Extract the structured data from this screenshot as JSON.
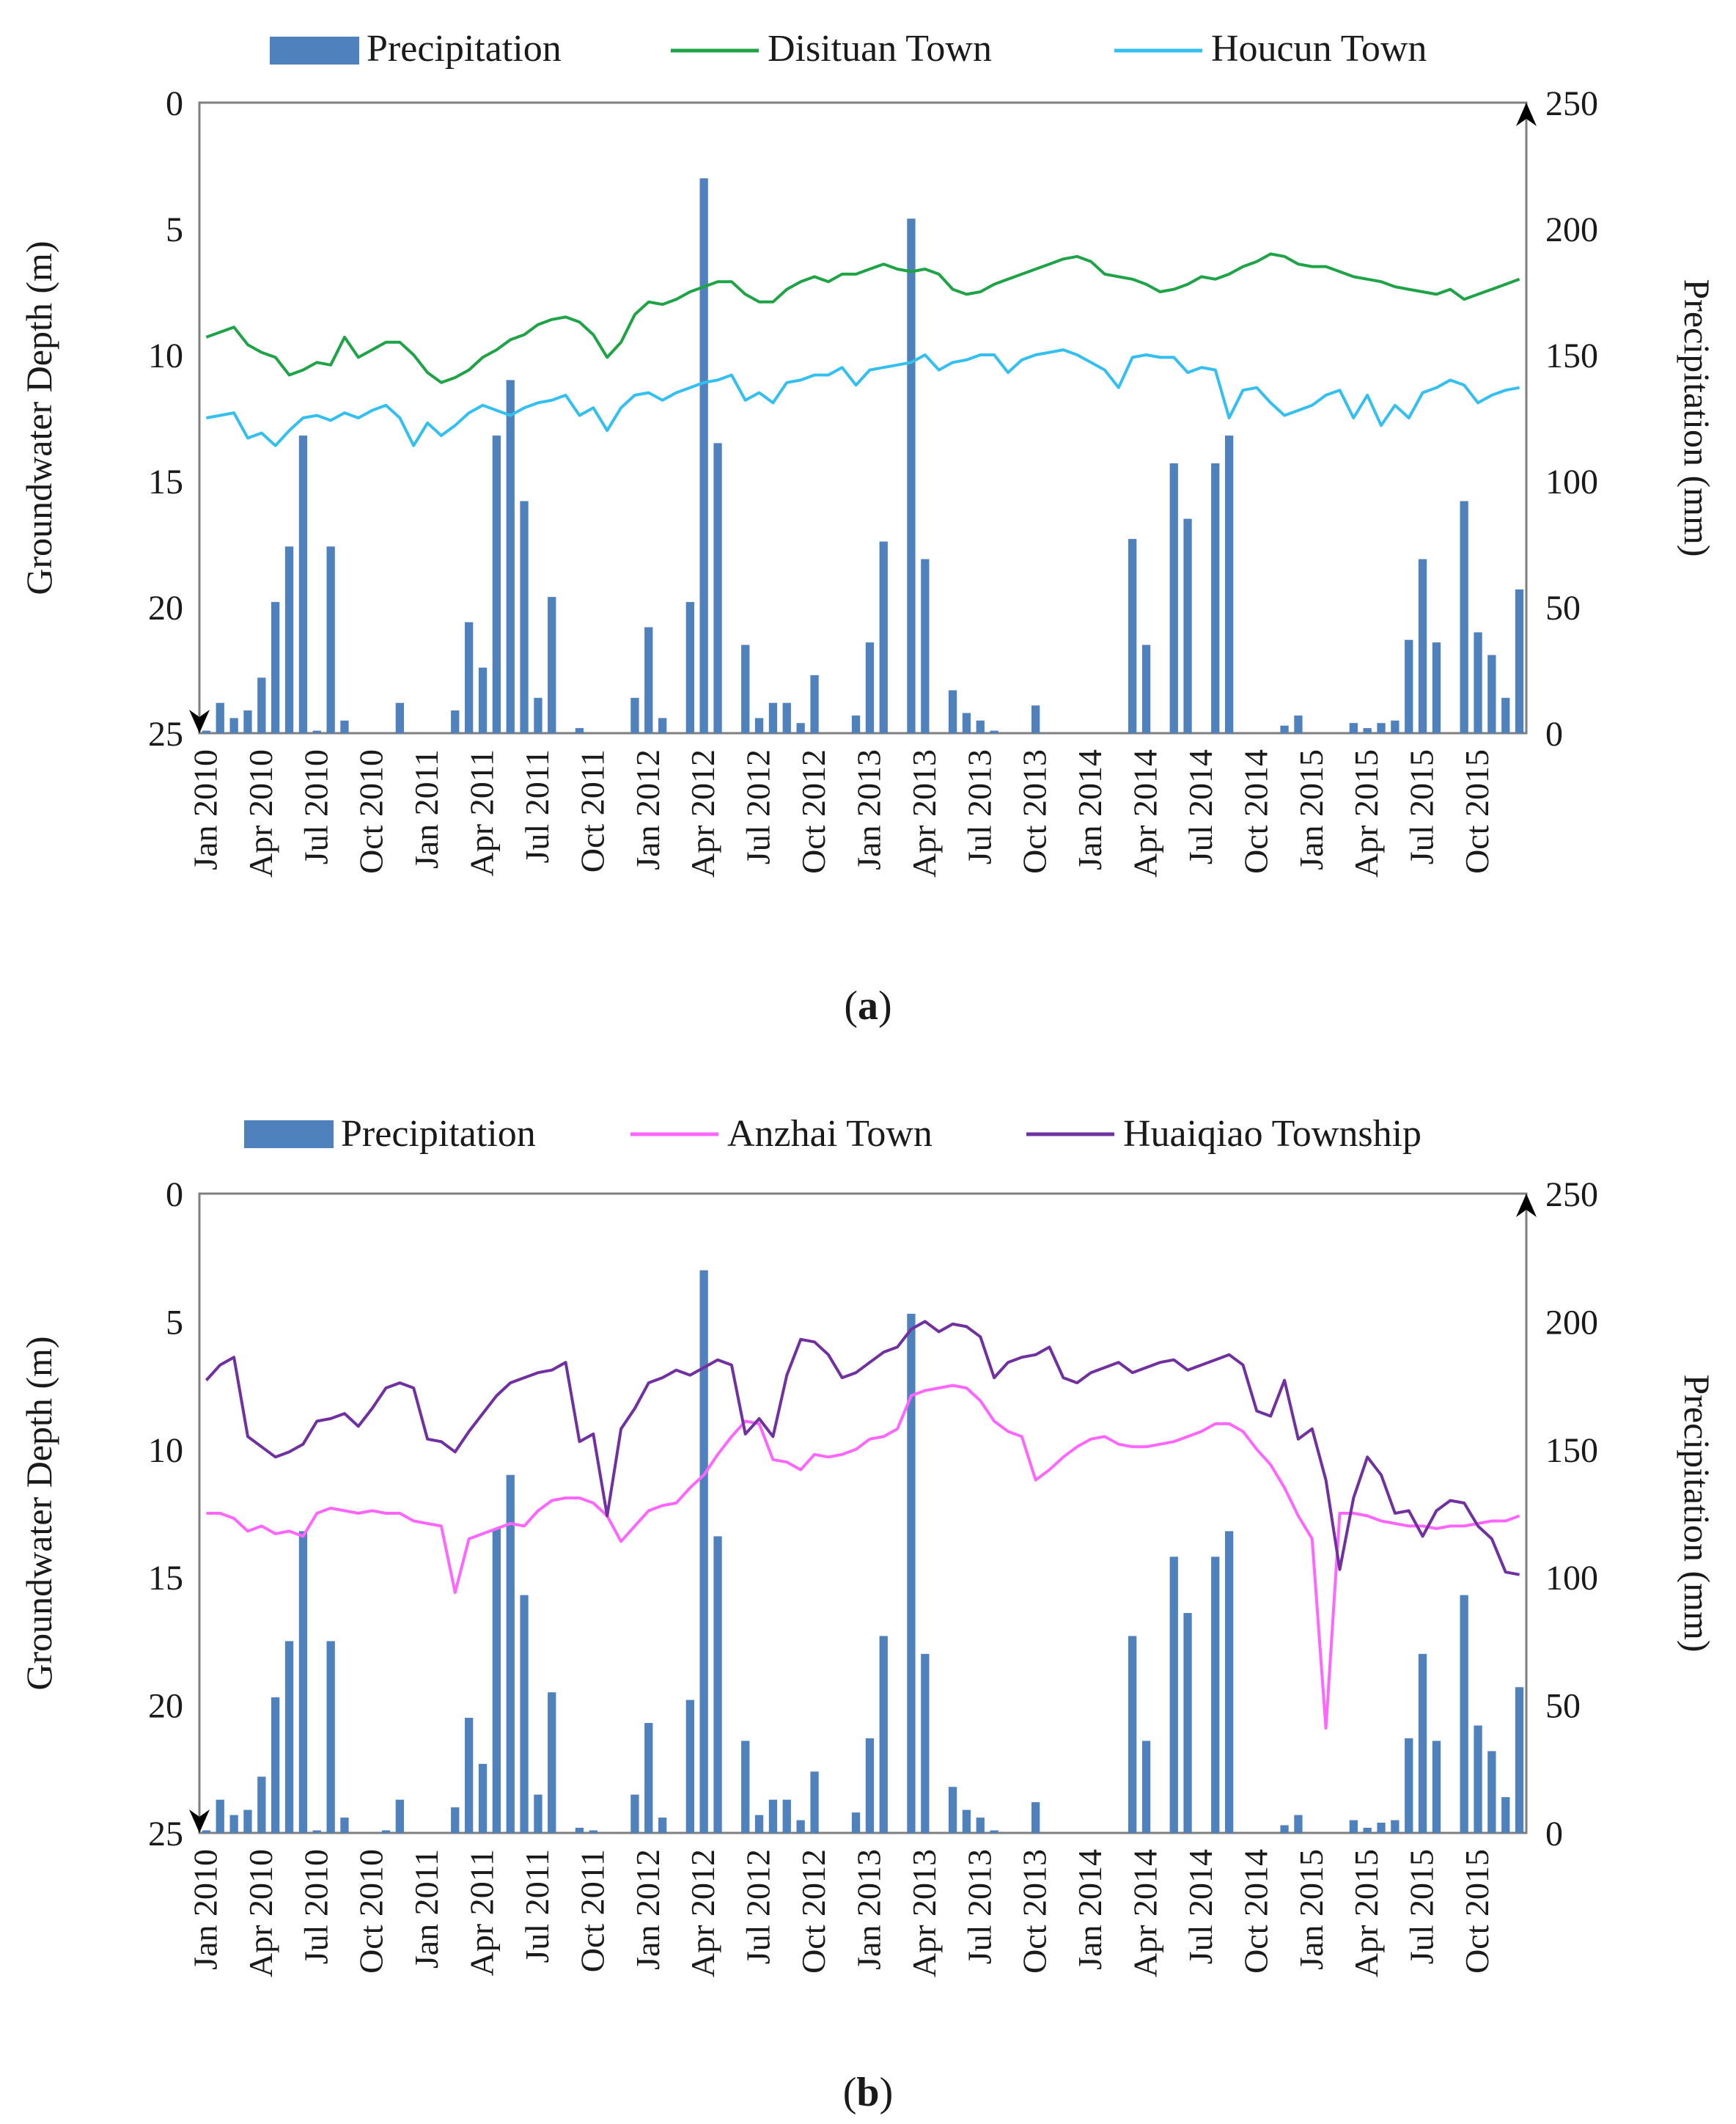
{
  "chart_data": [
    {
      "type": "bar+line",
      "panel_label": "(a)",
      "panel_letter": "a",
      "x_tick_labels": [
        "Jan 2010",
        "Apr 2010",
        "Jul 2010",
        "Oct 2010",
        "Jan 2011",
        "Apr 2011",
        "Jul 2011",
        "Oct 2011",
        "Jan 2012",
        "Apr 2012",
        "Jul 2012",
        "Oct 2012",
        "Jan 2013",
        "Apr 2013",
        "Jul 2013",
        "Oct 2013",
        "Jan 2014",
        "Apr 2014",
        "Jul 2014",
        "Oct 2014",
        "Jan 2015",
        "Apr 2015",
        "Jul 2015",
        "Oct 2015"
      ],
      "y_left": {
        "label": "Groundwater  Depth (m)",
        "ticks": [
          "0",
          "5",
          "10",
          "15",
          "20",
          "25"
        ],
        "range": [
          0,
          25
        ],
        "inverted": true
      },
      "y_right": {
        "label": "Precipitation (mm)",
        "ticks": [
          "0",
          "50",
          "100",
          "150",
          "200",
          "250"
        ],
        "range": [
          0,
          250
        ]
      },
      "legend": [
        "Precipitation",
        "Disituan Town",
        "Houcun Town"
      ],
      "precipitation": {
        "name": "Precipitation",
        "color": "#4f81bd",
        "values": [
          1,
          12,
          6,
          9,
          22,
          52,
          74,
          118,
          1,
          74,
          5,
          0,
          0,
          0,
          12,
          0,
          0,
          0,
          9,
          44,
          26,
          118,
          140,
          92,
          14,
          54,
          0,
          2,
          0,
          0,
          0,
          14,
          42,
          6,
          0,
          52,
          220,
          115,
          0,
          35,
          6,
          12,
          12,
          4,
          23,
          0,
          0,
          7,
          36,
          76,
          0,
          204,
          69,
          0,
          17,
          8,
          5,
          1,
          0,
          0,
          11,
          0,
          0,
          0,
          0,
          0,
          0,
          77,
          35,
          0,
          107,
          85,
          0,
          107,
          118,
          0,
          0,
          0,
          3,
          7,
          0,
          0,
          0,
          4,
          2,
          4,
          5,
          37,
          69,
          36,
          0,
          92,
          40,
          31,
          14,
          57
        ]
      },
      "series": [
        {
          "name": "Disituan Town",
          "color": "#1ea346",
          "values": [
            9.3,
            9.1,
            8.9,
            9.6,
            9.9,
            10.1,
            10.8,
            10.6,
            10.3,
            10.4,
            9.3,
            10.1,
            9.8,
            9.5,
            9.5,
            10.0,
            10.7,
            11.1,
            10.9,
            10.6,
            10.1,
            9.8,
            9.4,
            9.2,
            8.8,
            8.6,
            8.5,
            8.7,
            9.2,
            10.1,
            9.5,
            8.4,
            7.9,
            8.0,
            7.8,
            7.5,
            7.3,
            7.1,
            7.1,
            7.6,
            7.9,
            7.9,
            7.4,
            7.1,
            6.9,
            7.1,
            6.8,
            6.8,
            6.6,
            6.4,
            6.6,
            6.7,
            6.6,
            6.8,
            7.4,
            7.6,
            7.5,
            7.2,
            7.0,
            6.8,
            6.6,
            6.4,
            6.2,
            6.1,
            6.3,
            6.8,
            6.9,
            7.0,
            7.2,
            7.5,
            7.4,
            7.2,
            6.9,
            7.0,
            6.8,
            6.5,
            6.3,
            6.0,
            6.1,
            6.4,
            6.5,
            6.5,
            6.7,
            6.9,
            7.0,
            7.1,
            7.3,
            7.4,
            7.5,
            7.6,
            7.4,
            7.8,
            7.6,
            7.4,
            7.2,
            7.0
          ]
        },
        {
          "name": "Houcun Town",
          "color": "#33bff0",
          "values": [
            12.5,
            12.4,
            12.3,
            13.3,
            13.1,
            13.6,
            13.0,
            12.5,
            12.4,
            12.6,
            12.3,
            12.5,
            12.2,
            12.0,
            12.5,
            13.6,
            12.7,
            13.2,
            12.8,
            12.3,
            12.0,
            12.2,
            12.4,
            12.1,
            11.9,
            11.8,
            11.6,
            12.4,
            12.1,
            13.0,
            12.1,
            11.6,
            11.5,
            11.8,
            11.5,
            11.3,
            11.1,
            11.0,
            10.8,
            11.8,
            11.5,
            11.9,
            11.1,
            11.0,
            10.8,
            10.8,
            10.5,
            11.2,
            10.6,
            10.5,
            10.4,
            10.3,
            10.0,
            10.6,
            10.3,
            10.2,
            10.0,
            10.0,
            10.7,
            10.2,
            10.0,
            9.9,
            9.8,
            10.0,
            10.3,
            10.6,
            11.3,
            10.1,
            10.0,
            10.1,
            10.1,
            10.7,
            10.5,
            10.6,
            12.5,
            11.4,
            11.3,
            11.9,
            12.4,
            12.2,
            12.0,
            11.6,
            11.4,
            12.5,
            11.6,
            12.8,
            12.0,
            12.5,
            11.5,
            11.3,
            11.0,
            11.2,
            11.9,
            11.6,
            11.4,
            11.3
          ]
        }
      ]
    },
    {
      "type": "bar+line",
      "panel_label": "(b)",
      "panel_letter": "b",
      "x_tick_labels": [
        "Jan 2010",
        "Apr 2010",
        "Jul 2010",
        "Oct 2010",
        "Jan 2011",
        "Apr 2011",
        "Jul 2011",
        "Oct 2011",
        "Jan 2012",
        "Apr 2012",
        "Jul 2012",
        "Oct 2012",
        "Jan 2013",
        "Apr 2013",
        "Jul 2013",
        "Oct 2013",
        "Jan 2014",
        "Apr 2014",
        "Jul 2014",
        "Oct 2014",
        "Jan 2015",
        "Apr 2015",
        "Jul 2015",
        "Oct 2015"
      ],
      "y_left": {
        "label": "Groundwater Depth (m)",
        "ticks": [
          "0",
          "5",
          "10",
          "15",
          "20",
          "25"
        ],
        "range": [
          0,
          25
        ],
        "inverted": true
      },
      "y_right": {
        "label": "Precipitation (mm)",
        "ticks": [
          "0",
          "50",
          "100",
          "150",
          "200",
          "250"
        ],
        "range": [
          0,
          250
        ]
      },
      "legend": [
        "Precipitation",
        "Anzhai Town",
        "Huaiqiao Township"
      ],
      "precipitation": {
        "name": "Precipitation",
        "color": "#4f81bd",
        "values": [
          1,
          13,
          7,
          9,
          22,
          53,
          75,
          118,
          1,
          75,
          6,
          0,
          0,
          1,
          13,
          0,
          0,
          0,
          10,
          45,
          27,
          119,
          140,
          93,
          15,
          55,
          0,
          2,
          1,
          0,
          0,
          15,
          43,
          6,
          0,
          52,
          220,
          116,
          0,
          36,
          7,
          13,
          13,
          5,
          24,
          0,
          0,
          8,
          37,
          77,
          0,
          203,
          70,
          0,
          18,
          9,
          6,
          1,
          0,
          0,
          12,
          0,
          0,
          0,
          0,
          0,
          0,
          77,
          36,
          0,
          108,
          86,
          0,
          108,
          118,
          0,
          0,
          0,
          3,
          7,
          0,
          0,
          0,
          5,
          2,
          4,
          5,
          37,
          70,
          36,
          0,
          93,
          42,
          32,
          14,
          57
        ]
      },
      "series": [
        {
          "name": "Anzhai Town",
          "color": "#ff66ff",
          "values": [
            12.5,
            12.5,
            12.7,
            13.2,
            13.0,
            13.3,
            13.2,
            13.4,
            12.5,
            12.3,
            12.4,
            12.5,
            12.4,
            12.5,
            12.5,
            12.8,
            12.9,
            13.0,
            15.6,
            13.5,
            13.3,
            13.1,
            12.9,
            13.0,
            12.4,
            12.0,
            11.9,
            11.9,
            12.1,
            12.6,
            13.6,
            13.0,
            12.4,
            12.2,
            12.1,
            11.5,
            11.0,
            10.2,
            9.5,
            8.9,
            9.0,
            10.4,
            10.5,
            10.8,
            10.2,
            10.3,
            10.2,
            10.0,
            9.6,
            9.5,
            9.2,
            7.9,
            7.7,
            7.6,
            7.5,
            7.6,
            8.1,
            8.9,
            9.3,
            9.5,
            11.2,
            10.8,
            10.3,
            9.9,
            9.6,
            9.5,
            9.8,
            9.9,
            9.9,
            9.8,
            9.7,
            9.5,
            9.3,
            9.0,
            9.0,
            9.3,
            10.0,
            10.6,
            11.5,
            12.6,
            13.5,
            20.9,
            12.5,
            12.5,
            12.6,
            12.8,
            12.9,
            13.0,
            13.0,
            13.1,
            13.0,
            13.0,
            12.9,
            12.8,
            12.8,
            12.6
          ]
        },
        {
          "name": "Huaiqiao Township",
          "color": "#7030a0",
          "values": [
            7.3,
            6.7,
            6.4,
            9.5,
            9.9,
            10.3,
            10.1,
            9.8,
            8.9,
            8.8,
            8.6,
            9.1,
            8.4,
            7.6,
            7.4,
            7.6,
            9.6,
            9.7,
            10.1,
            9.3,
            8.6,
            7.9,
            7.4,
            7.2,
            7.0,
            6.9,
            6.6,
            9.7,
            9.4,
            12.6,
            9.2,
            8.4,
            7.4,
            7.2,
            6.9,
            7.1,
            6.8,
            6.5,
            6.7,
            9.4,
            8.8,
            9.5,
            7.1,
            5.7,
            5.8,
            6.3,
            7.2,
            7.0,
            6.6,
            6.2,
            6.0,
            5.3,
            5.0,
            5.4,
            5.1,
            5.2,
            5.6,
            7.2,
            6.6,
            6.4,
            6.3,
            6.0,
            7.2,
            7.4,
            7.0,
            6.8,
            6.6,
            7.0,
            6.8,
            6.6,
            6.5,
            6.9,
            6.7,
            6.5,
            6.3,
            6.7,
            8.5,
            8.7,
            7.3,
            9.6,
            9.2,
            11.2,
            14.7,
            11.9,
            10.3,
            11.0,
            12.5,
            12.4,
            13.4,
            12.4,
            12.0,
            12.1,
            13.0,
            13.5,
            14.8,
            14.9
          ]
        }
      ]
    }
  ]
}
